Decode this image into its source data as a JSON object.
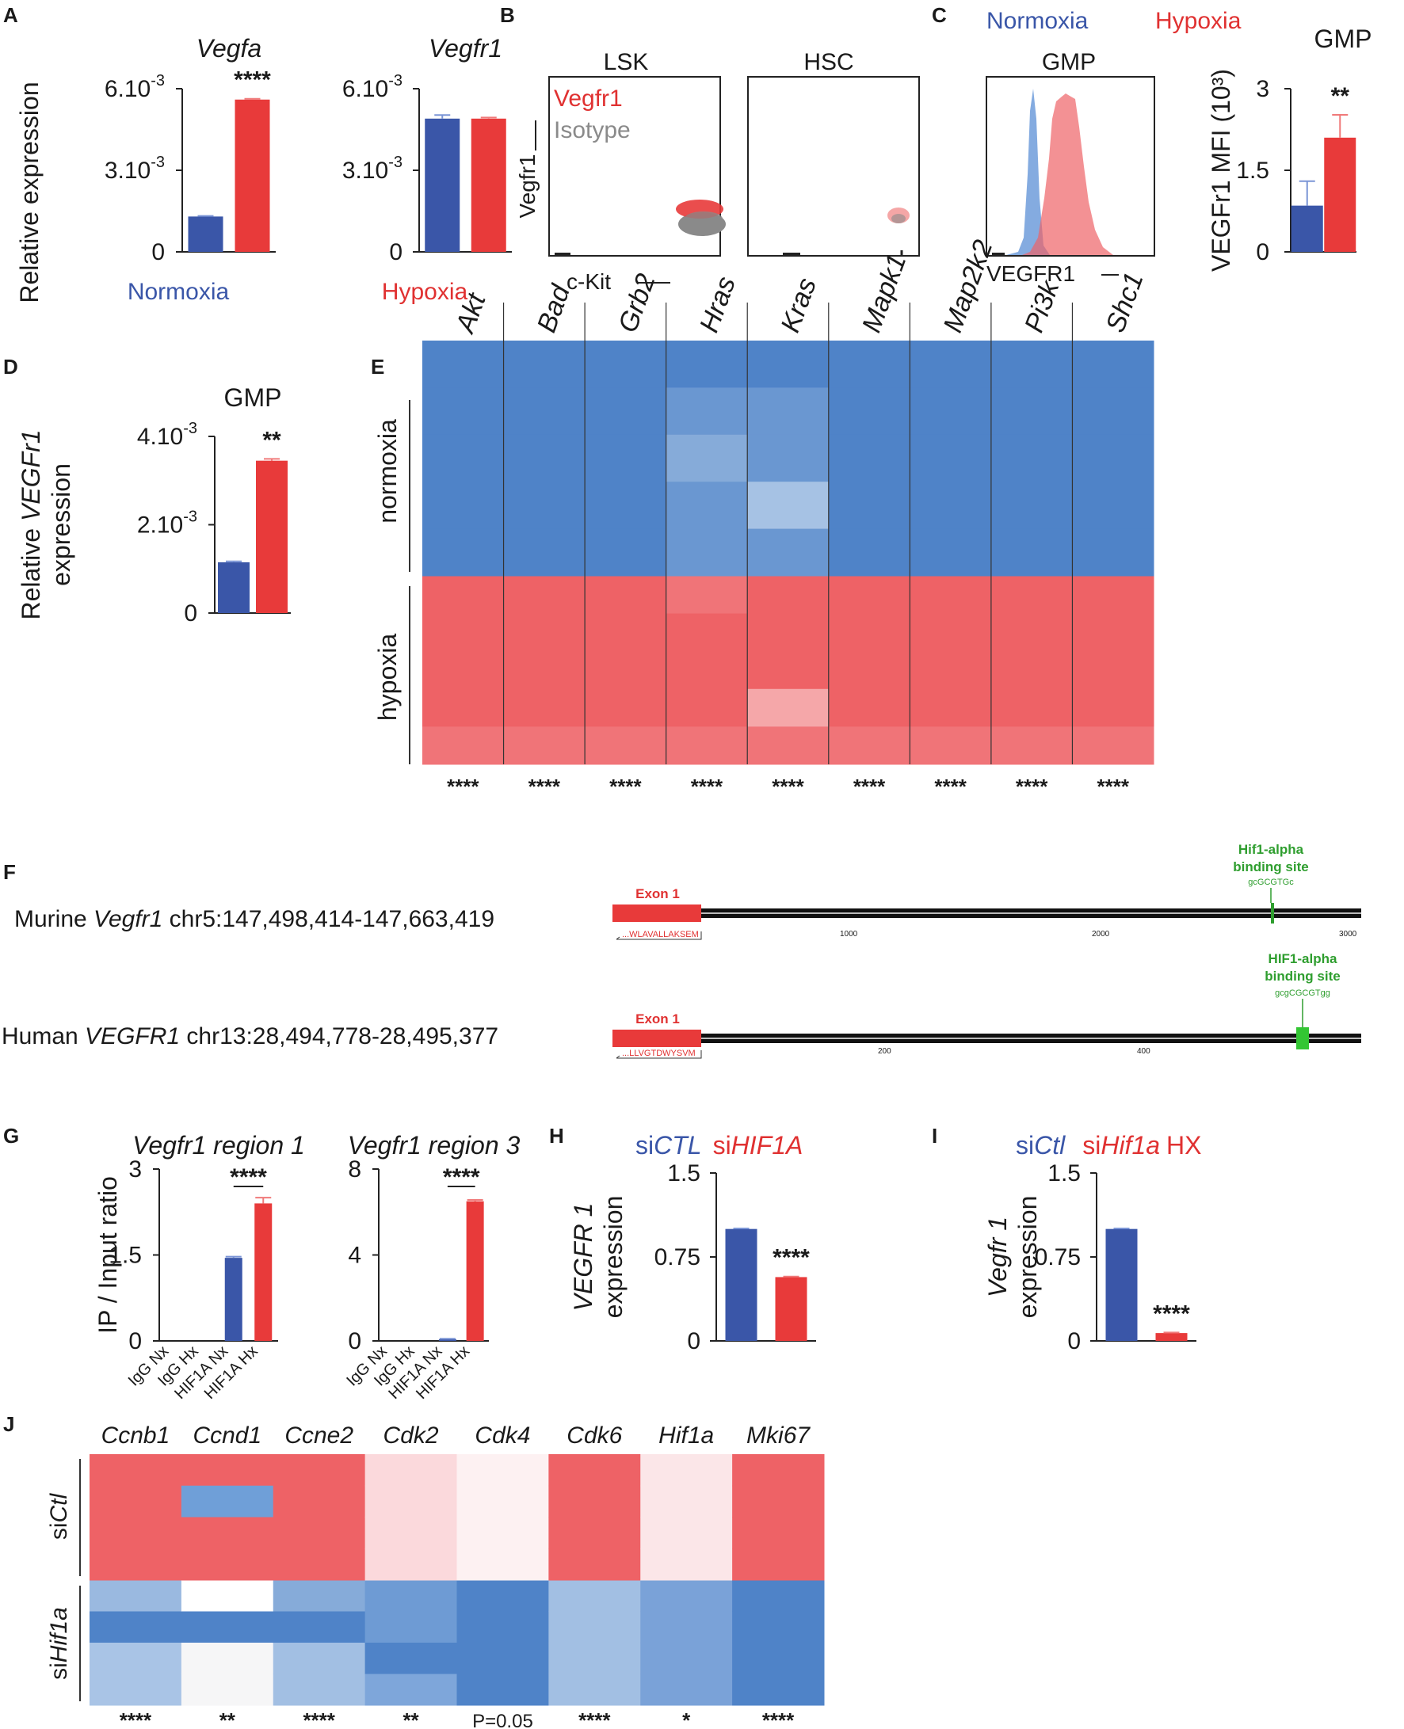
{
  "figure": {
    "colors": {
      "normoxia": "#3a56a8",
      "hypoxia": "#e83a3a",
      "green": "#2f9e2f",
      "heat_blue": "#4f83c8",
      "heat_red": "#ee6266",
      "gray": "#8a8a8a"
    },
    "panel_labels": [
      "A",
      "B",
      "C",
      "D",
      "E",
      "F",
      "G",
      "H",
      "I",
      "J"
    ],
    "legends": {
      "normoxia": "Normoxia",
      "hypoxia": "Hypoxia",
      "si_ctl_prefix": "si",
      "si_ctl_ital": "CTL",
      "si_hif_prefix": "si",
      "si_hif_ital": "HIF1A",
      "si_ctl2_prefix": "si",
      "si_ctl2_ital": "Ctl",
      "si_hif2_prefix": "si",
      "si_hif2_ital": "Hif1a",
      "si_hif2_suffix": "HX"
    },
    "flow": {
      "lsk_title": "LSK",
      "hsc_title": "HSC",
      "gmp_title": "GMP",
      "y_label": "Vegfr1",
      "x_label": "c-Kit",
      "x_label_c": "VEGFR1",
      "legend_vegfr1": "Vegfr1",
      "legend_isotype": "Isotype"
    },
    "gene_map": {
      "murine_prefix": "Murine ",
      "murine_gene": "Vegfr1",
      "murine_coords": " chr5:147,498,414-147,663,419",
      "human_prefix": "Human ",
      "human_gene": "VEGFR1",
      "human_coords": " chr13:28,494,778-28,495,377",
      "exon_label": "Exon 1",
      "murine_site_line1": "Hif1-alpha",
      "murine_site_line2": "binding site",
      "murine_site_seq": "gcGCGTGc",
      "human_site_line1": "HIF1-alpha",
      "human_site_line2": "binding site",
      "human_site_seq": "gcgCGCGTgg",
      "murine_peptide": "...WLAVALLAKSEM",
      "human_peptide": "...LLVGTDWYSVM",
      "murine_ticks": [
        "1000",
        "2000",
        "3000"
      ],
      "human_ticks": [
        "200",
        "400"
      ]
    },
    "heatmap_E": {
      "genes": [
        "Akt",
        "Bad",
        "Grb2",
        "Hras",
        "Kras",
        "Mapk1",
        "Map2k2",
        "Pi3k",
        "Shc1"
      ],
      "groups": [
        "normoxia",
        "hypoxia"
      ],
      "significance": [
        "****",
        "****",
        "****",
        "****",
        "****",
        "****",
        "****",
        "****",
        "****"
      ]
    },
    "heatmap_J": {
      "genes": [
        "Ccnb1",
        "Ccnd1",
        "Ccne2",
        "Cdk2",
        "Cdk4",
        "Cdk6",
        "Hif1a",
        "Mki67"
      ],
      "group1_prefix": "si",
      "group1_ital": "Ctl",
      "group2_prefix": "si",
      "group2_ital": "Hif1a",
      "significance": [
        "****",
        "**",
        "****",
        "**",
        "P=0.05",
        "****",
        "*",
        "****"
      ]
    }
  },
  "chart_data": [
    {
      "id": "A1",
      "type": "bar",
      "title": "Vegfa",
      "ylabel": "Relative expression",
      "categories": [
        "Normoxia",
        "Hypoxia"
      ],
      "values": [
        0.0013,
        0.0056
      ],
      "errors": [
        2e-05,
        3e-05
      ],
      "ylim": [
        0,
        0.006
      ],
      "yticks": [
        0,
        0.003,
        0.006
      ],
      "ytick_labels": [
        "0",
        "3.10",
        "6.10"
      ],
      "ytick_sup": [
        "",
        "-3",
        "-3"
      ],
      "significance": "****",
      "legend_under": "Normoxia"
    },
    {
      "id": "A2",
      "type": "bar",
      "title": "Vegfr1",
      "ylabel": "",
      "categories": [
        "Normoxia",
        "Hypoxia"
      ],
      "values": [
        0.0049,
        0.0049
      ],
      "errors": [
        0.00013,
        4e-05
      ],
      "ylim": [
        0,
        0.006
      ],
      "yticks": [
        0,
        0.003,
        0.006
      ],
      "ytick_labels": [
        "0",
        "3.10",
        "6.10"
      ],
      "ytick_sup": [
        "",
        "-3",
        "-3"
      ],
      "significance": "",
      "legend_under": "Hypoxia"
    },
    {
      "id": "C",
      "type": "bar",
      "title": "GMP",
      "ylabel": "VEGFr1 MFI (10³)",
      "categories": [
        "Normoxia",
        "Hypoxia"
      ],
      "values": [
        0.85,
        2.1
      ],
      "errors": [
        0.45,
        0.42
      ],
      "ylim": [
        0,
        3
      ],
      "yticks": [
        0,
        1.5,
        3
      ],
      "ytick_labels": [
        "0",
        "1.5",
        "3"
      ],
      "ytick_sup": [
        "",
        "",
        ""
      ],
      "significance": "**"
    },
    {
      "id": "D",
      "type": "bar",
      "title": "GMP",
      "ylabel": "Relative VEGFr1 expression",
      "categories": [
        "Normoxia",
        "Hypoxia"
      ],
      "values": [
        0.00115,
        0.00345
      ],
      "errors": [
        2e-05,
        4e-05
      ],
      "ylim": [
        0,
        0.004
      ],
      "yticks": [
        0,
        0.002,
        0.004
      ],
      "ytick_labels": [
        "0",
        "2.10",
        "4.10"
      ],
      "ytick_sup": [
        "",
        "-3",
        "-3"
      ],
      "significance": "**"
    },
    {
      "id": "G1",
      "type": "bar",
      "title": "Vegfr1 region 1",
      "ylabel": "IP / Input ratio",
      "categories": [
        "IgG Nx",
        "IgG Hx",
        "HIF1A Nx",
        "HIF1A Hx"
      ],
      "values": [
        0,
        0,
        1.45,
        2.4
      ],
      "errors": [
        0,
        0,
        0.02,
        0.1
      ],
      "ylim": [
        0,
        3
      ],
      "yticks": [
        0,
        1.5,
        3
      ],
      "ytick_labels": [
        "0",
        "1.5",
        "3"
      ],
      "ytick_sup": [
        "",
        "",
        ""
      ],
      "significance": "****"
    },
    {
      "id": "G2",
      "type": "bar",
      "title": "Vegfr1 region 3",
      "ylabel": "",
      "categories": [
        "IgG Nx",
        "IgG Hx",
        "HIF1A Nx",
        "HIF1A Hx"
      ],
      "values": [
        0,
        0,
        0.08,
        6.5
      ],
      "errors": [
        0,
        0,
        0.02,
        0.06
      ],
      "ylim": [
        0,
        8
      ],
      "yticks": [
        0,
        4,
        8
      ],
      "ytick_labels": [
        "0",
        "4",
        "8"
      ],
      "ytick_sup": [
        "",
        "",
        ""
      ],
      "significance": "****"
    },
    {
      "id": "H",
      "type": "bar",
      "title": "",
      "ylabel": "VEGFR 1 expression",
      "categories": [
        "siCTL",
        "siHIF1A"
      ],
      "values": [
        1.0,
        0.57
      ],
      "errors": [
        0.005,
        0.005
      ],
      "ylim": [
        0,
        1.5
      ],
      "yticks": [
        0,
        0.75,
        1.5
      ],
      "ytick_labels": [
        "0",
        "0.75",
        "1.5"
      ],
      "ytick_sup": [
        "",
        "",
        ""
      ],
      "significance": "****"
    },
    {
      "id": "I",
      "type": "bar",
      "title": "",
      "ylabel": "Vegfr 1 expression",
      "categories": [
        "siCtl",
        "siHif1a HX"
      ],
      "values": [
        1.0,
        0.07
      ],
      "errors": [
        0.005,
        0.005
      ],
      "ylim": [
        0,
        1.5
      ],
      "yticks": [
        0,
        0.75,
        1.5
      ],
      "ytick_labels": [
        "0",
        "0.75",
        "1.5"
      ],
      "ytick_sup": [
        "",
        "",
        ""
      ],
      "significance": "****"
    }
  ]
}
